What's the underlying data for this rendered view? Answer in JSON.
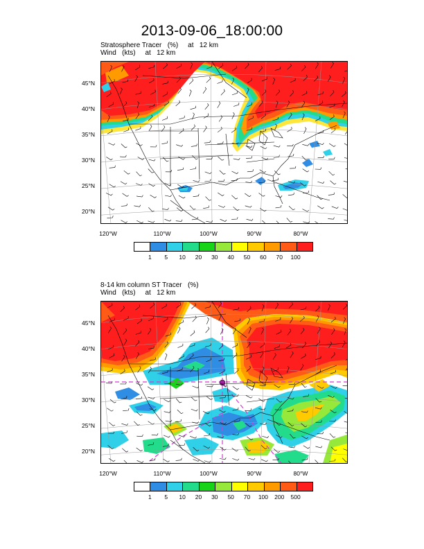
{
  "title": "2013-09-06_18:00:00",
  "chart_data": [
    {
      "type": "heatmap",
      "title_left": "Stratosphere Tracer   (%)     at   12 km",
      "subtitle_left": "Wind   (kts)     at   12 km",
      "lat_ticks": [
        "45°N",
        "40°N",
        "35°N",
        "30°N",
        "25°N",
        "20°N"
      ],
      "lon_ticks": [
        "120°W",
        "110°W",
        "100°W",
        "90°W",
        "80°W"
      ],
      "colorbar": {
        "labels": [
          "1",
          "5",
          "10",
          "20",
          "30",
          "40",
          "50",
          "60",
          "70",
          "100"
        ],
        "colors": [
          "#ffffff",
          "#2f8de4",
          "#2fd0e8",
          "#22dc8c",
          "#18d418",
          "#96e83a",
          "#ffff00",
          "#ffcb00",
          "#ff9a00",
          "#ff5a16",
          "#ff1e1e"
        ]
      }
    },
    {
      "type": "heatmap",
      "title_left": "8-14 km column ST Tracer   (%)",
      "subtitle_left": "Wind   (kts)     at   12 km",
      "lat_ticks": [
        "45°N",
        "40°N",
        "35°N",
        "30°N",
        "25°N",
        "20°N"
      ],
      "lon_ticks": [
        "120°W",
        "110°W",
        "100°W",
        "90°W",
        "80°W"
      ],
      "colorbar": {
        "labels": [
          "1",
          "5",
          "10",
          "20",
          "30",
          "50",
          "70",
          "100",
          "200",
          "500"
        ],
        "colors": [
          "#ffffff",
          "#2f8de4",
          "#2fd0e8",
          "#22dc8c",
          "#18d418",
          "#96e83a",
          "#ffff00",
          "#ffcb00",
          "#ff9a00",
          "#ff5a16",
          "#ff1e1e"
        ]
      }
    }
  ]
}
